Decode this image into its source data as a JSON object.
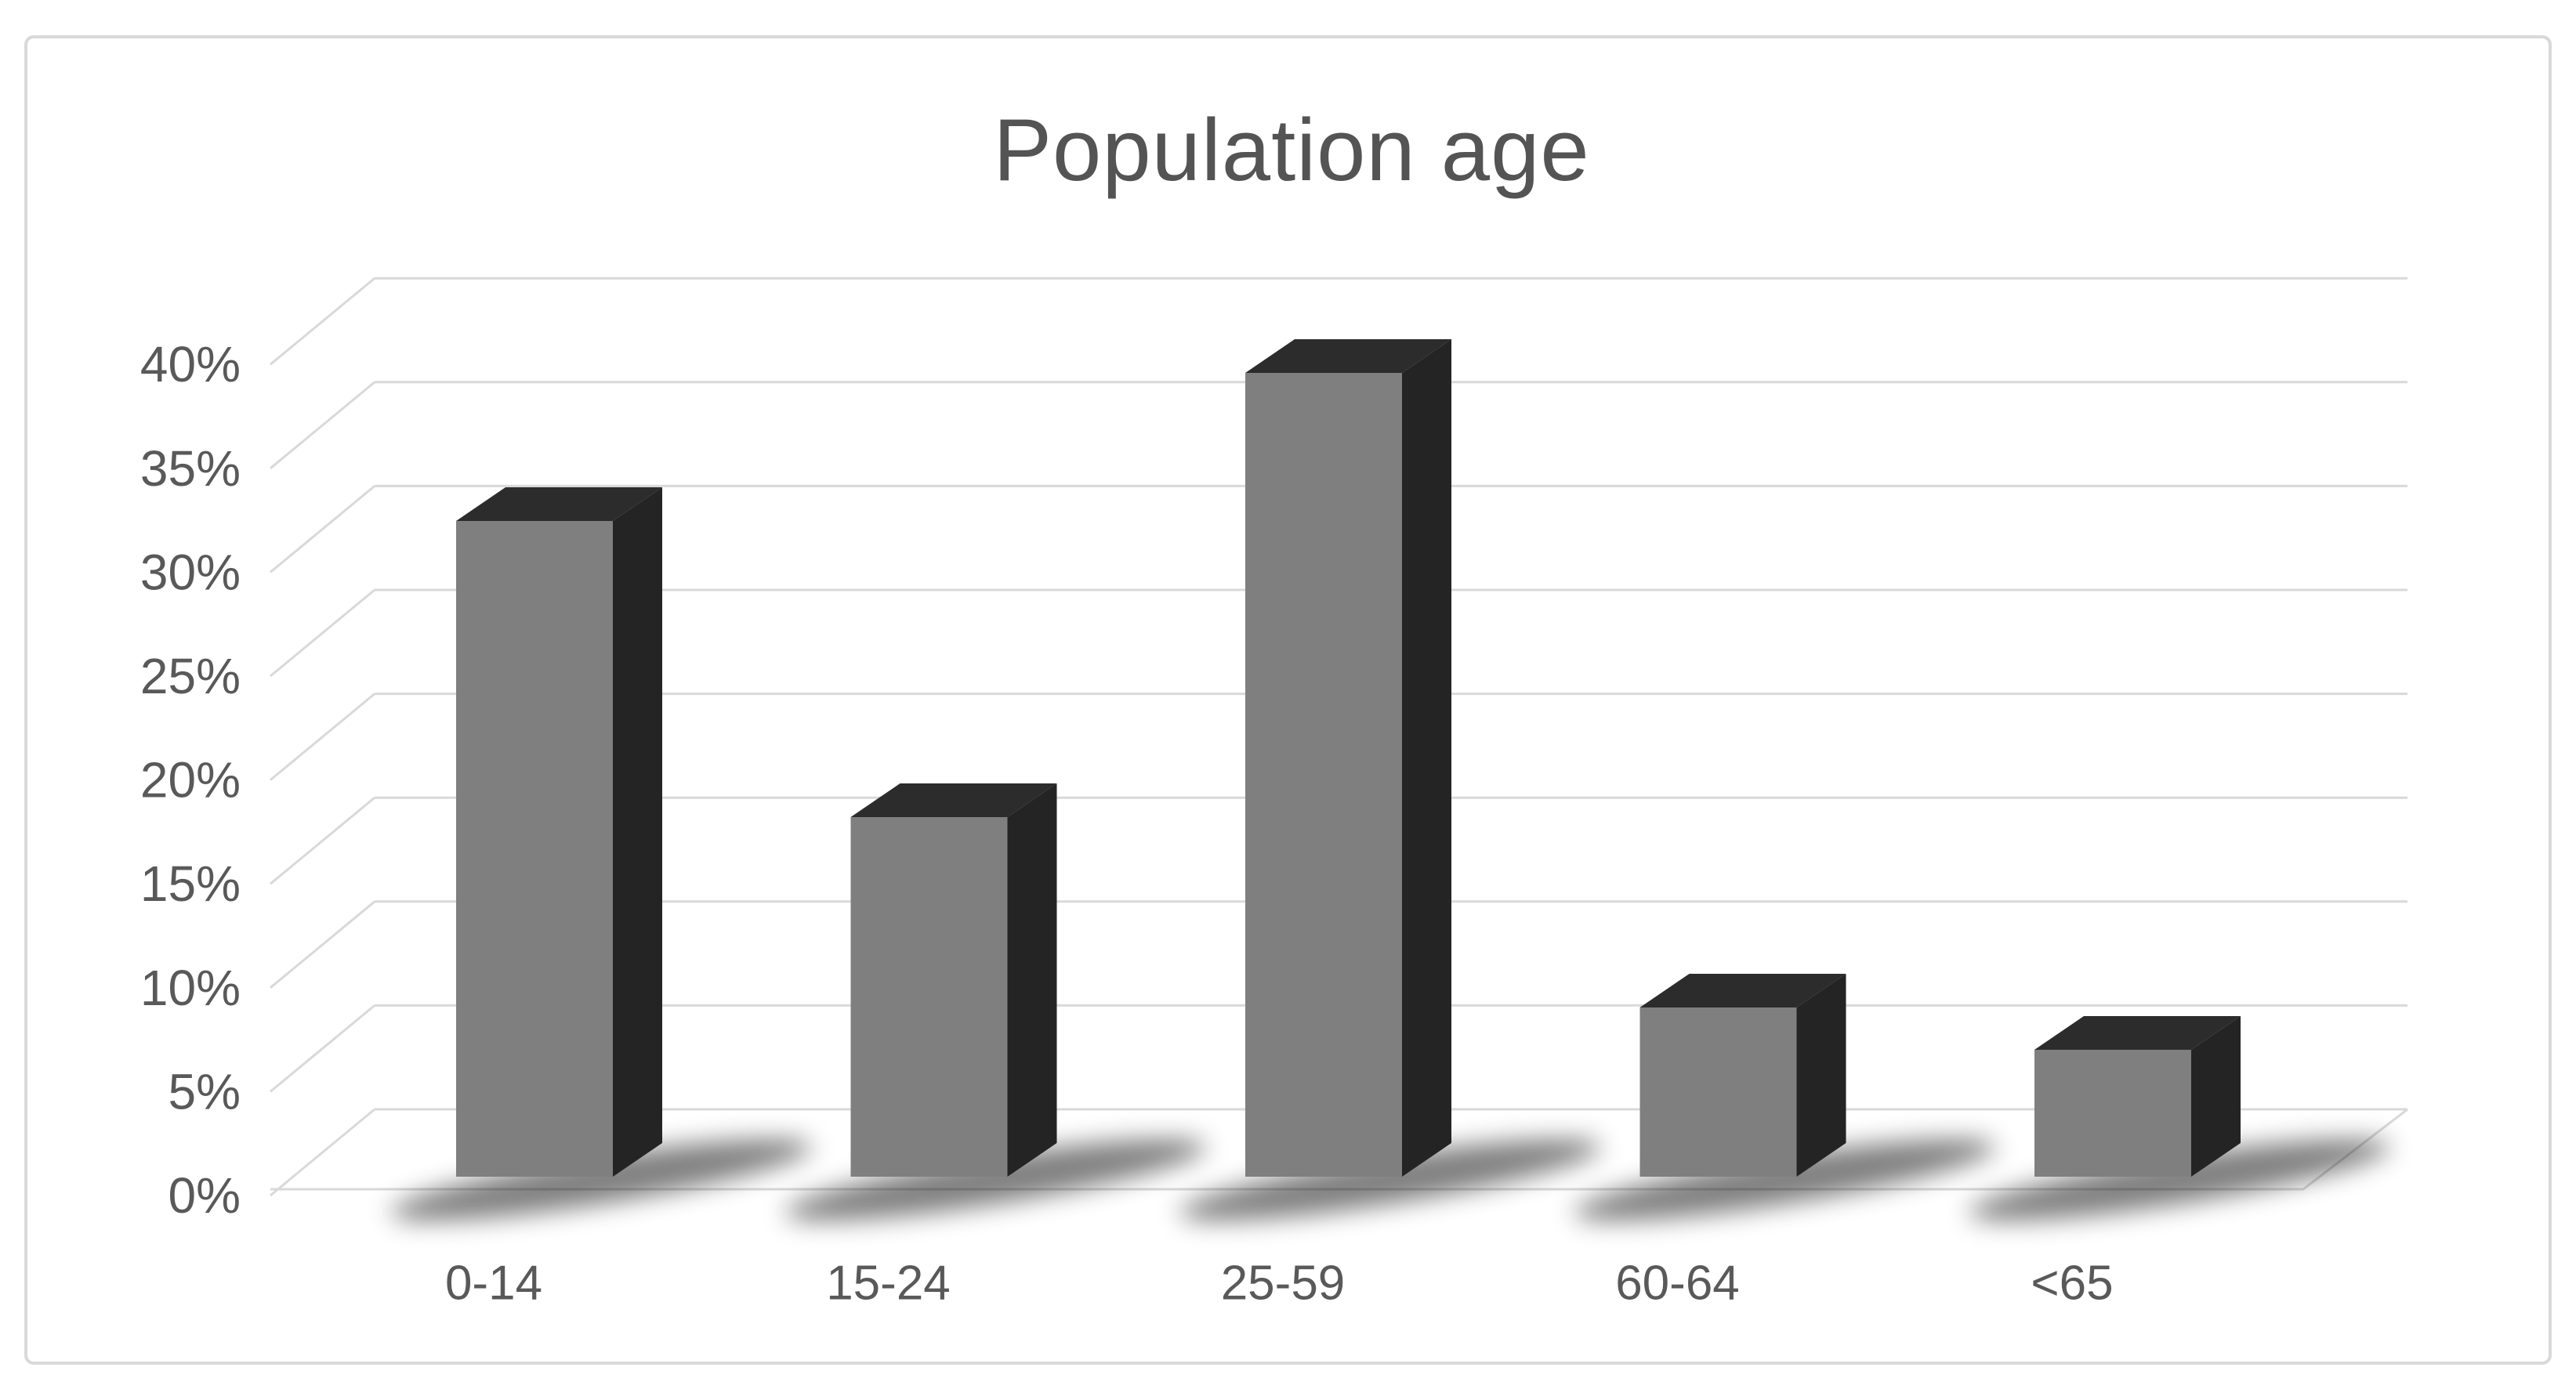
{
  "window": {
    "background": "#ffffff",
    "card_border_color": "#d9d9d9"
  },
  "chart_data": {
    "type": "bar",
    "style": "3d-column",
    "title": "Population age",
    "categories": [
      "0-14",
      "15-24",
      "25-59",
      "60-64",
      "<65"
    ],
    "values": [
      31,
      17,
      38,
      8,
      6
    ],
    "unit": "%",
    "xlabel": "",
    "ylabel": "",
    "ylim": [
      0,
      40
    ],
    "ytick_step": 5,
    "ytick_labels": [
      "0%",
      "5%",
      "10%",
      "15%",
      "20%",
      "25%",
      "30%",
      "35%",
      "40%"
    ],
    "grid": true,
    "legend": false,
    "colors": {
      "bar_front": "#7f7f7f",
      "bar_top": "#2c2c2c",
      "bar_side": "#242424",
      "gridline": "#d9d9d9",
      "axis_text": "#595959",
      "title_text": "#545454",
      "shadow": "#000000",
      "background": "#ffffff"
    }
  }
}
